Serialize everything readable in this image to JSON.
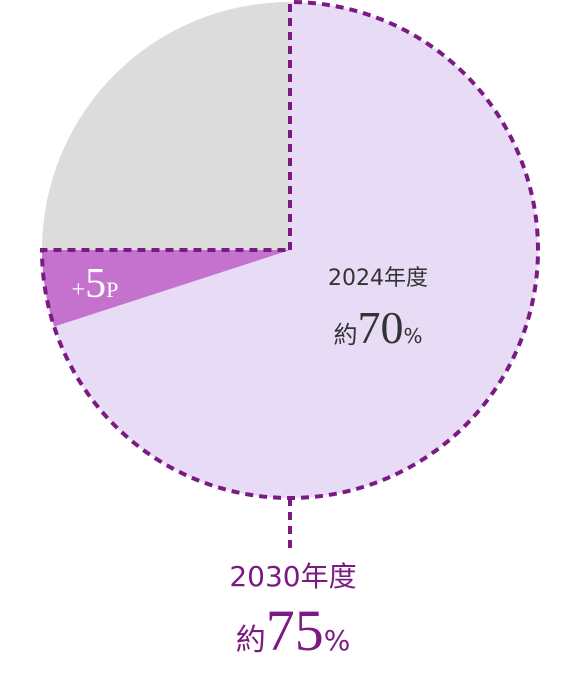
{
  "chart_data": {
    "type": "pie",
    "slices": [
      {
        "name": "2024年度",
        "prefix": "約",
        "value": 70,
        "unit": "%",
        "color": "#e7dbf6"
      },
      {
        "sign": "+",
        "value": 5,
        "unit": "P",
        "color": "#c572cf"
      },
      {
        "value": 25,
        "color": "#dcdcdc"
      }
    ],
    "outline": {
      "name": "2030年度",
      "prefix": "約",
      "value": 75,
      "unit": "%",
      "color": "#7b1a83"
    }
  }
}
